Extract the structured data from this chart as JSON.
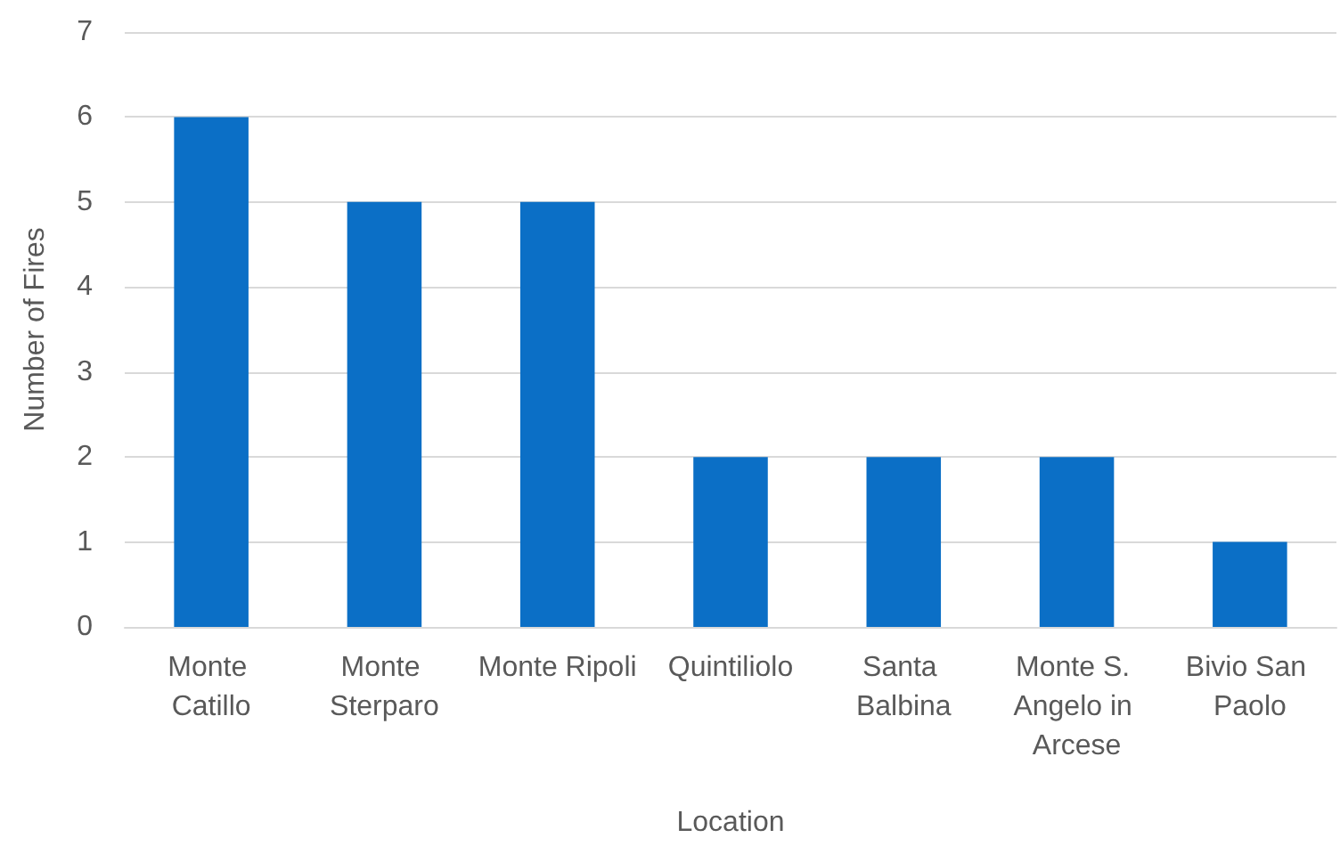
{
  "chart_data": {
    "type": "bar",
    "categories": [
      "Monte Catillo",
      "Monte Sterparo",
      "Monte Ripoli",
      "Quintiliolo",
      "Santa Balbina",
      "Monte S. Angelo in Arcese",
      "Bivio San Paolo"
    ],
    "values": [
      6,
      5,
      5,
      2,
      2,
      2,
      1
    ],
    "color": "#0b6fc6",
    "xlabel": "Location",
    "ylabel": "Number of Fires",
    "ylim": [
      0,
      7
    ],
    "yticks": [
      0,
      1,
      2,
      3,
      4,
      5,
      6,
      7
    ],
    "grid": "y"
  }
}
